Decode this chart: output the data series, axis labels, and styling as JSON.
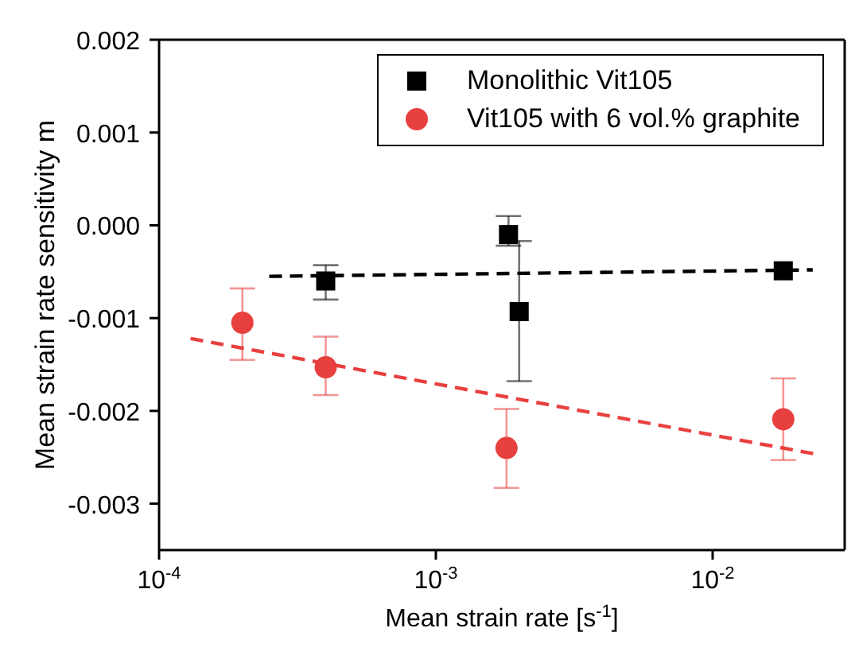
{
  "chart_data": {
    "type": "scatter",
    "xlabel": "Mean strain rate [s$^{-1}$]",
    "ylabel": "Mean strain rate sensitivity m",
    "log": "x",
    "xlim": [
      0.0001,
      0.03
    ],
    "xticks": [
      {
        "value": 0.0001,
        "label": "10$^{-4}$"
      },
      {
        "value": 0.001,
        "label": "10$^{-3}$"
      },
      {
        "value": 0.01,
        "label": "10$^{-2}$"
      }
    ],
    "ylim": [
      -0.0035,
      0.002
    ],
    "yticks": [
      {
        "value": -0.003,
        "label": "-0.003"
      },
      {
        "value": -0.002,
        "label": "-0.002"
      },
      {
        "value": -0.001,
        "label": "-0.001"
      },
      {
        "value": 0,
        "label": "0.000"
      },
      {
        "value": 0.001,
        "label": "0.001"
      },
      {
        "value": 0.002,
        "label": "0.002"
      }
    ],
    "grid": false,
    "legend": "top right",
    "series": [
      {
        "name": "Monolithic Vit105",
        "type": "scatter",
        "marker": "square",
        "color": "#000000",
        "x": [
          0.0004,
          0.00183,
          0.002,
          0.018
        ],
        "values": [
          -0.0006,
          -0.0001,
          -0.00093,
          -0.00049
        ],
        "errors": [
          [
            -0.0008,
            -0.00043
          ],
          [
            -0.00022,
            0.0001
          ],
          [
            -0.00168,
            -0.00017
          ],
          null
        ]
      },
      {
        "name": "Vit105 with 6 vol.% graphite",
        "type": "scatter",
        "marker": "circle",
        "color": "#e8403f",
        "x": [
          0.0002,
          0.0004,
          0.0018,
          0.018
        ],
        "values": [
          -0.00105,
          -0.00153,
          -0.0024,
          -0.00209
        ],
        "errors": [
          [
            -0.00145,
            -0.00068
          ],
          [
            -0.00183,
            -0.0012
          ],
          [
            -0.00283,
            -0.00198
          ],
          [
            -0.00253,
            -0.00165
          ]
        ]
      },
      {
        "type": "line",
        "line_style": "dashed",
        "marker": "none",
        "color": "#000000",
        "x": [
          0.00025,
          0.023
        ],
        "values": [
          -0.00055,
          -0.00048
        ]
      },
      {
        "type": "line",
        "line_style": "dashed",
        "marker": "none",
        "color": "#e8403f",
        "x": [
          0.00013,
          0.024
        ],
        "values": [
          -0.00122,
          -0.00247
        ]
      }
    ]
  }
}
